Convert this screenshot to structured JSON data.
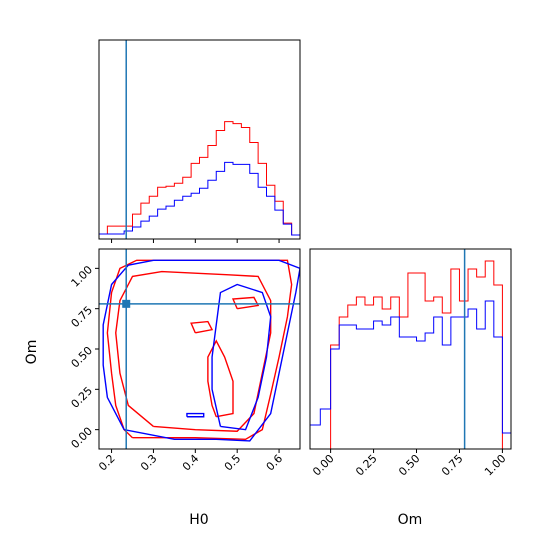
{
  "colors": {
    "series_a": "#ff0000",
    "series_b": "#0000ff",
    "truth": "#1f77b4",
    "axis": "#000000"
  },
  "chart_data": [
    {
      "type": "histogram",
      "panel": "top-left",
      "parameter": "H0",
      "xlim": [
        0.17,
        0.65
      ],
      "truth": 0.235,
      "bins": [
        0.17,
        0.19,
        0.21,
        0.23,
        0.25,
        0.27,
        0.29,
        0.31,
        0.33,
        0.35,
        0.37,
        0.39,
        0.41,
        0.43,
        0.45,
        0.47,
        0.49,
        0.51,
        0.53,
        0.55,
        0.57,
        0.59,
        0.61,
        0.63,
        0.65
      ],
      "series": [
        {
          "color": "red",
          "counts": [
            0.025,
            0.065,
            0.065,
            0.065,
            0.125,
            0.18,
            0.215,
            0.26,
            0.265,
            0.28,
            0.31,
            0.38,
            0.41,
            0.47,
            0.545,
            0.59,
            0.58,
            0.56,
            0.485,
            0.38,
            0.27,
            0.19,
            0.08,
            0.02
          ]
        },
        {
          "color": "blue",
          "counts": [
            0.025,
            0.025,
            0.025,
            0.04,
            0.06,
            0.09,
            0.115,
            0.15,
            0.165,
            0.195,
            0.215,
            0.23,
            0.255,
            0.295,
            0.34,
            0.385,
            0.375,
            0.375,
            0.33,
            0.26,
            0.215,
            0.145,
            0.075,
            0.02
          ]
        }
      ]
    },
    {
      "type": "contour",
      "panel": "bottom-left",
      "xlabel": "H0",
      "ylabel": "Om",
      "xlim": [
        0.17,
        0.65
      ],
      "ylim": [
        -0.12,
        1.12
      ],
      "xticks": [
        "0.2",
        "0.3",
        "0.4",
        "0.5",
        "0.6"
      ],
      "yticks": [
        "0.00",
        "0.25",
        "0.50",
        "0.75",
        "1.00"
      ],
      "truth": [
        0.235,
        0.78
      ],
      "contours": [
        {
          "color": "red",
          "points": [
            [
              0.25,
              -0.05
            ],
            [
              0.4,
              -0.05
            ],
            [
              0.52,
              -0.06
            ],
            [
              0.56,
              0.0
            ],
            [
              0.58,
              0.22
            ],
            [
              0.6,
              0.45
            ],
            [
              0.62,
              0.7
            ],
            [
              0.63,
              0.9
            ],
            [
              0.62,
              1.05
            ],
            [
              0.55,
              1.05
            ],
            [
              0.47,
              1.05
            ],
            [
              0.4,
              1.05
            ],
            [
              0.33,
              1.05
            ],
            [
              0.26,
              1.05
            ],
            [
              0.22,
              1.0
            ],
            [
              0.2,
              0.85
            ],
            [
              0.19,
              0.6
            ],
            [
              0.2,
              0.35
            ],
            [
              0.21,
              0.15
            ],
            [
              0.23,
              0.0
            ],
            [
              0.25,
              -0.05
            ]
          ]
        },
        {
          "color": "red",
          "points": [
            [
              0.3,
              0.02
            ],
            [
              0.4,
              0.0
            ],
            [
              0.5,
              -0.01
            ],
            [
              0.54,
              0.1
            ],
            [
              0.56,
              0.35
            ],
            [
              0.58,
              0.6
            ],
            [
              0.58,
              0.8
            ],
            [
              0.55,
              0.95
            ],
            [
              0.48,
              0.96
            ],
            [
              0.4,
              0.97
            ],
            [
              0.32,
              0.98
            ],
            [
              0.25,
              0.95
            ],
            [
              0.22,
              0.8
            ],
            [
              0.21,
              0.6
            ],
            [
              0.22,
              0.35
            ],
            [
              0.24,
              0.15
            ],
            [
              0.3,
              0.02
            ]
          ]
        },
        {
          "color": "red",
          "points": [
            [
              0.45,
              0.08
            ],
            [
              0.49,
              0.1
            ],
            [
              0.49,
              0.3
            ],
            [
              0.47,
              0.45
            ],
            [
              0.45,
              0.55
            ],
            [
              0.43,
              0.45
            ],
            [
              0.43,
              0.3
            ],
            [
              0.44,
              0.15
            ],
            [
              0.45,
              0.08
            ]
          ]
        },
        {
          "color": "red",
          "points": [
            [
              0.4,
              0.6
            ],
            [
              0.44,
              0.62
            ],
            [
              0.43,
              0.67
            ],
            [
              0.39,
              0.66
            ],
            [
              0.4,
              0.6
            ]
          ]
        },
        {
          "color": "red",
          "points": [
            [
              0.5,
              0.75
            ],
            [
              0.55,
              0.77
            ],
            [
              0.54,
              0.82
            ],
            [
              0.49,
              0.81
            ],
            [
              0.5,
              0.75
            ]
          ]
        },
        {
          "color": "blue",
          "points": [
            [
              0.23,
              0.0
            ],
            [
              0.35,
              -0.06
            ],
            [
              0.45,
              -0.06
            ],
            [
              0.53,
              -0.07
            ],
            [
              0.58,
              0.1
            ],
            [
              0.6,
              0.35
            ],
            [
              0.62,
              0.6
            ],
            [
              0.64,
              0.85
            ],
            [
              0.65,
              1.0
            ],
            [
              0.6,
              1.05
            ],
            [
              0.5,
              1.05
            ],
            [
              0.4,
              1.05
            ],
            [
              0.3,
              1.05
            ],
            [
              0.24,
              1.02
            ],
            [
              0.2,
              0.9
            ],
            [
              0.18,
              0.65
            ],
            [
              0.18,
              0.4
            ],
            [
              0.19,
              0.2
            ],
            [
              0.23,
              0.0
            ]
          ]
        },
        {
          "color": "blue",
          "points": [
            [
              0.46,
              0.02
            ],
            [
              0.52,
              0.0
            ],
            [
              0.55,
              0.2
            ],
            [
              0.57,
              0.45
            ],
            [
              0.58,
              0.7
            ],
            [
              0.56,
              0.85
            ],
            [
              0.5,
              0.9
            ],
            [
              0.46,
              0.85
            ],
            [
              0.45,
              0.65
            ],
            [
              0.44,
              0.45
            ],
            [
              0.44,
              0.25
            ],
            [
              0.46,
              0.02
            ]
          ]
        },
        {
          "color": "blue",
          "points": [
            [
              0.38,
              0.08
            ],
            [
              0.42,
              0.08
            ],
            [
              0.42,
              0.1
            ],
            [
              0.38,
              0.1
            ],
            [
              0.38,
              0.08
            ]
          ]
        }
      ]
    },
    {
      "type": "histogram",
      "panel": "bottom-right",
      "xlabel": "Om",
      "xlim": [
        -0.12,
        1.05
      ],
      "xticks": [
        "0.00",
        "0.25",
        "0.50",
        "0.75",
        "1.00"
      ],
      "truth": 0.78,
      "bins": [
        -0.12,
        -0.06,
        0.0,
        0.05,
        0.1,
        0.15,
        0.2,
        0.25,
        0.3,
        0.35,
        0.4,
        0.45,
        0.5,
        0.55,
        0.6,
        0.65,
        0.7,
        0.75,
        0.8,
        0.85,
        0.9,
        0.95,
        1.0,
        1.05
      ],
      "series": [
        {
          "color": "red",
          "counts": [
            0,
            0,
            0.52,
            0.66,
            0.72,
            0.76,
            0.72,
            0.76,
            0.7,
            0.76,
            0.66,
            0.88,
            0.88,
            0.74,
            0.76,
            0.68,
            0.9,
            0.74,
            0.9,
            0.86,
            0.94,
            0.82,
            0
          ]
        },
        {
          "color": "blue",
          "counts": [
            0.12,
            0.2,
            0.5,
            0.62,
            0.62,
            0.6,
            0.6,
            0.64,
            0.62,
            0.66,
            0.56,
            0.56,
            0.54,
            0.58,
            0.66,
            0.52,
            0.66,
            0.66,
            0.7,
            0.6,
            0.74,
            0.56,
            0.08
          ]
        }
      ]
    }
  ]
}
